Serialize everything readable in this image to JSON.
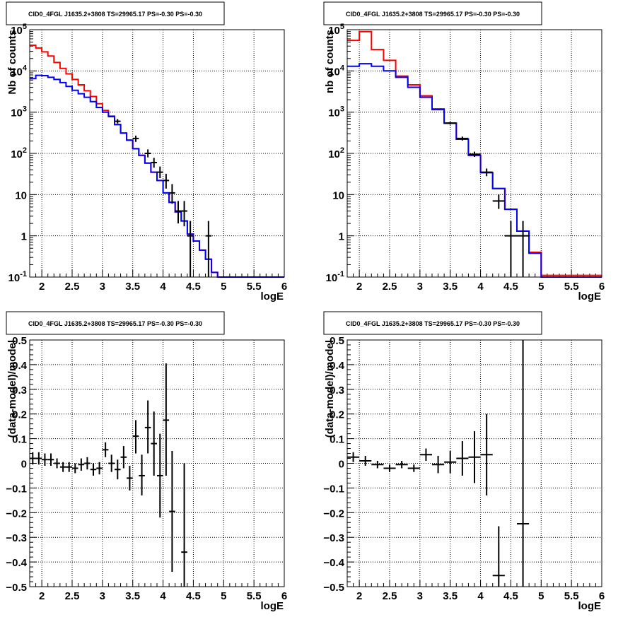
{
  "chart_data": [
    {
      "type": "line",
      "title": "CID0_4FGL J1635.2+3808 TS=29965.17 PS=-0.30 PS=-0.30",
      "xlabel": "logE",
      "ylabel": "Nb of counts",
      "xlim": [
        1.8,
        6.0
      ],
      "ylim": [
        0.1,
        100000
      ],
      "yscale": "log",
      "grid": true,
      "x_ticks": [
        "2",
        "2.5",
        "3",
        "3.5",
        "4",
        "4.5",
        "5",
        "5.5",
        "6"
      ],
      "y_ticks": [
        {
          "value": 0.1,
          "base": "10",
          "exp": "-1"
        },
        {
          "value": 1,
          "label": "1"
        },
        {
          "value": 10,
          "label": "10"
        },
        {
          "value": 100,
          "base": "10",
          "exp": "2"
        },
        {
          "value": 1000,
          "base": "10",
          "exp": "3"
        },
        {
          "value": 10000,
          "base": "10",
          "exp": "4"
        },
        {
          "value": 100000,
          "base": "10",
          "exp": "5"
        }
      ],
      "series": [
        {
          "kind": "step",
          "color": "#ff0000",
          "edges": [
            1.8,
            1.9,
            2.0,
            2.1,
            2.2,
            2.3,
            2.4,
            2.5,
            2.6,
            2.7,
            2.8,
            2.9,
            3.0,
            3.1,
            3.2,
            3.3,
            3.4,
            3.5,
            3.6,
            3.7,
            3.8,
            3.9,
            4.0,
            4.1,
            4.2,
            4.3,
            4.4,
            4.5,
            4.6,
            4.7,
            4.8,
            4.9,
            5.0,
            5.1,
            5.2,
            5.3,
            5.4,
            5.5,
            5.6,
            5.7,
            5.8,
            5.9,
            6.0
          ],
          "values": [
            42000,
            36000,
            29000,
            23000,
            16000,
            11500,
            8500,
            6200,
            4600,
            3300,
            2400,
            1600,
            1100,
            800,
            500,
            310,
            210,
            130,
            90,
            58,
            35,
            22,
            11,
            6.5,
            3.8,
            2.3,
            1.1,
            0.75,
            0.45,
            0.27,
            0.13,
            0.1,
            0.1,
            0.1,
            0.1,
            0.1,
            0.1,
            0.1,
            0.1,
            0.1,
            0.1,
            0.1
          ]
        },
        {
          "kind": "step",
          "color": "#0000ff",
          "edges": [
            1.8,
            1.9,
            2.0,
            2.1,
            2.2,
            2.3,
            2.4,
            2.5,
            2.6,
            2.7,
            2.8,
            2.9,
            3.0,
            3.1,
            3.2,
            3.3,
            3.4,
            3.5,
            3.6,
            3.7,
            3.8,
            3.9,
            4.0,
            4.1,
            4.2,
            4.3,
            4.4,
            4.5,
            4.6,
            4.7,
            4.8,
            4.9,
            5.0,
            5.1,
            5.2,
            5.3,
            5.4,
            5.5,
            5.6,
            5.7,
            5.8,
            5.9,
            6.0
          ],
          "values": [
            6500,
            7800,
            7700,
            7000,
            6200,
            5200,
            4200,
            3400,
            2800,
            2300,
            1800,
            1300,
            1000,
            780,
            500,
            310,
            210,
            130,
            90,
            58,
            35,
            22,
            11,
            6.5,
            3.8,
            2.3,
            1.1,
            0.75,
            0.45,
            0.27,
            0.13,
            0.1,
            0.1,
            0.1,
            0.1,
            0.1,
            0.1,
            0.1,
            0.1,
            0.1,
            0.1,
            0.1
          ]
        },
        {
          "kind": "points",
          "color": "#000000",
          "points": [
            {
              "x": 3.25,
              "xerr": 0.05,
              "y": 600,
              "ylo": 530,
              "yhi": 680
            },
            {
              "x": 3.55,
              "xerr": 0.05,
              "y": 230,
              "ylo": 190,
              "yhi": 270
            },
            {
              "x": 3.75,
              "xerr": 0.05,
              "y": 100,
              "ylo": 80,
              "yhi": 125
            },
            {
              "x": 3.85,
              "xerr": 0.05,
              "y": 60,
              "ylo": 45,
              "yhi": 78
            },
            {
              "x": 3.95,
              "xerr": 0.05,
              "y": 35,
              "ylo": 25,
              "yhi": 48
            },
            {
              "x": 4.05,
              "xerr": 0.05,
              "y": 22,
              "ylo": 14,
              "yhi": 32
            },
            {
              "x": 4.15,
              "xerr": 0.05,
              "y": 11,
              "ylo": 6,
              "yhi": 18
            },
            {
              "x": 4.25,
              "xerr": 0.05,
              "y": 4,
              "ylo": 2,
              "yhi": 7
            },
            {
              "x": 4.35,
              "xerr": 0.05,
              "y": 4,
              "ylo": 1.7,
              "yhi": 7
            },
            {
              "x": 4.45,
              "xerr": 0.05,
              "y": 1,
              "ylo": 0.1,
              "yhi": 2.3
            },
            {
              "x": 4.75,
              "xerr": 0.05,
              "y": 1,
              "ylo": 0.1,
              "yhi": 2.3
            }
          ]
        }
      ]
    },
    {
      "type": "line",
      "title": "CID0_4FGL J1635.2+3808 TS=29965.17 PS=-0.30 PS=-0.30",
      "xlabel": "logE",
      "ylabel": "nb of counts",
      "xlim": [
        1.8,
        6.0
      ],
      "ylim": [
        0.1,
        100000
      ],
      "yscale": "log",
      "grid": true,
      "x_ticks": [
        "2",
        "2.5",
        "3",
        "3.5",
        "4",
        "4.5",
        "5",
        "5.5",
        "6"
      ],
      "y_ticks": [
        {
          "value": 0.1,
          "base": "10",
          "exp": "-1"
        },
        {
          "value": 1,
          "label": "1"
        },
        {
          "value": 10,
          "label": "10"
        },
        {
          "value": 100,
          "base": "10",
          "exp": "2"
        },
        {
          "value": 1000,
          "base": "10",
          "exp": "3"
        },
        {
          "value": 10000,
          "base": "10",
          "exp": "4"
        },
        {
          "value": 100000,
          "base": "10",
          "exp": "5"
        }
      ],
      "series": [
        {
          "kind": "step",
          "color": "#ff0000",
          "edges": [
            1.8,
            2.0,
            2.2,
            2.4,
            2.6,
            2.8,
            3.0,
            3.2,
            3.4,
            3.6,
            3.8,
            4.0,
            4.2,
            4.4,
            4.6,
            4.8,
            5.0,
            5.2,
            5.4,
            5.6,
            5.8,
            6.0
          ],
          "values": [
            55000,
            90000,
            33000,
            18000,
            7500,
            4600,
            2500,
            1200,
            540,
            220,
            90,
            34,
            14,
            4.4,
            1.3,
            0.4,
            0.11,
            0.11,
            0.11,
            0.11,
            0.11
          ]
        },
        {
          "kind": "step",
          "color": "#0000ff",
          "edges": [
            1.8,
            2.0,
            2.2,
            2.4,
            2.6,
            2.8,
            3.0,
            3.2,
            3.4,
            3.6,
            3.8,
            4.0,
            4.2,
            4.4,
            4.6,
            4.8,
            5.0,
            5.2,
            5.4,
            5.6,
            5.8,
            6.0
          ],
          "values": [
            13000,
            15000,
            13000,
            10000,
            7000,
            4000,
            2300,
            1150,
            540,
            220,
            90,
            34,
            14,
            4.4,
            1.3,
            0.38,
            0.1,
            0.1,
            0.1,
            0.1,
            0.1
          ]
        },
        {
          "kind": "points",
          "color": "#000000",
          "points": [
            {
              "x": 3.5,
              "xerr": 0.1,
              "y": 540,
              "ylo": 500,
              "yhi": 580
            },
            {
              "x": 3.7,
              "xerr": 0.1,
              "y": 230,
              "ylo": 205,
              "yhi": 255
            },
            {
              "x": 3.9,
              "xerr": 0.1,
              "y": 95,
              "ylo": 82,
              "yhi": 110
            },
            {
              "x": 4.1,
              "xerr": 0.1,
              "y": 35,
              "ylo": 28,
              "yhi": 43
            },
            {
              "x": 4.3,
              "xerr": 0.1,
              "y": 7,
              "ylo": 4.5,
              "yhi": 10
            },
            {
              "x": 4.5,
              "xerr": 0.1,
              "y": 1,
              "ylo": 0.1,
              "yhi": 2.3
            },
            {
              "x": 4.7,
              "xerr": 0.1,
              "y": 1,
              "ylo": 0.1,
              "yhi": 2.3
            }
          ]
        }
      ]
    },
    {
      "type": "scatter",
      "title": "CID0_4FGL J1635.2+3808 TS=29965.17 PS=-0.30 PS=-0.30",
      "xlabel": "logE",
      "ylabel": "(data-model)/model",
      "xlim": [
        1.8,
        6.0
      ],
      "ylim": [
        -0.5,
        0.5
      ],
      "yscale": "linear",
      "grid": true,
      "x_ticks": [
        "2",
        "2.5",
        "3",
        "3.5",
        "4",
        "4.5",
        "5",
        "5.5",
        "6"
      ],
      "y_ticks": [
        {
          "value": 0.5,
          "label": "0.5"
        },
        {
          "value": 0.4,
          "label": "0.4"
        },
        {
          "value": 0.3,
          "label": "0.3"
        },
        {
          "value": 0.2,
          "label": "0.2"
        },
        {
          "value": 0.1,
          "label": "0.1"
        },
        {
          "value": 0,
          "label": "0"
        },
        {
          "value": -0.1,
          "label": "−0.1"
        },
        {
          "value": -0.2,
          "label": "−0.2"
        },
        {
          "value": -0.3,
          "label": "−0.3"
        },
        {
          "value": -0.4,
          "label": "−0.4"
        },
        {
          "value": -0.5,
          "label": "−0.5"
        }
      ],
      "series": [
        {
          "kind": "points",
          "color": "#000000",
          "points": [
            {
              "x": 1.85,
              "xerr": 0.05,
              "y": 0.02,
              "ylo": -0.005,
              "yhi": 0.045
            },
            {
              "x": 1.95,
              "xerr": 0.05,
              "y": 0.02,
              "ylo": -0.005,
              "yhi": 0.045
            },
            {
              "x": 2.05,
              "xerr": 0.05,
              "y": 0.015,
              "ylo": -0.01,
              "yhi": 0.04
            },
            {
              "x": 2.15,
              "xerr": 0.05,
              "y": 0.015,
              "ylo": -0.01,
              "yhi": 0.04
            },
            {
              "x": 2.25,
              "xerr": 0.05,
              "y": 0.0,
              "ylo": -0.02,
              "yhi": 0.02
            },
            {
              "x": 2.35,
              "xerr": 0.05,
              "y": -0.015,
              "ylo": -0.035,
              "yhi": 0.005
            },
            {
              "x": 2.45,
              "xerr": 0.05,
              "y": -0.015,
              "ylo": -0.035,
              "yhi": 0.005
            },
            {
              "x": 2.55,
              "xerr": 0.05,
              "y": -0.02,
              "ylo": -0.04,
              "yhi": 0.0
            },
            {
              "x": 2.65,
              "xerr": 0.05,
              "y": -0.005,
              "ylo": -0.03,
              "yhi": 0.02
            },
            {
              "x": 2.75,
              "xerr": 0.05,
              "y": 0.0,
              "ylo": -0.025,
              "yhi": 0.025
            },
            {
              "x": 2.85,
              "xerr": 0.05,
              "y": -0.025,
              "ylo": -0.05,
              "yhi": 0.0
            },
            {
              "x": 2.95,
              "xerr": 0.05,
              "y": -0.02,
              "ylo": -0.045,
              "yhi": 0.005
            },
            {
              "x": 3.05,
              "xerr": 0.05,
              "y": 0.055,
              "ylo": 0.025,
              "yhi": 0.085
            },
            {
              "x": 3.15,
              "xerr": 0.05,
              "y": 0.0,
              "ylo": -0.035,
              "yhi": 0.035
            },
            {
              "x": 3.25,
              "xerr": 0.05,
              "y": -0.025,
              "ylo": -0.065,
              "yhi": 0.015
            },
            {
              "x": 3.35,
              "xerr": 0.05,
              "y": 0.025,
              "ylo": -0.02,
              "yhi": 0.07
            },
            {
              "x": 3.45,
              "xerr": 0.05,
              "y": -0.06,
              "ylo": -0.11,
              "yhi": -0.01
            },
            {
              "x": 3.55,
              "xerr": 0.05,
              "y": 0.11,
              "ylo": 0.04,
              "yhi": 0.175
            },
            {
              "x": 3.65,
              "xerr": 0.05,
              "y": -0.05,
              "ylo": -0.13,
              "yhi": 0.035
            },
            {
              "x": 3.75,
              "xerr": 0.05,
              "y": 0.145,
              "ylo": 0.04,
              "yhi": 0.255
            },
            {
              "x": 3.85,
              "xerr": 0.05,
              "y": 0.08,
              "ylo": -0.05,
              "yhi": 0.21
            },
            {
              "x": 3.95,
              "xerr": 0.05,
              "y": -0.05,
              "ylo": -0.22,
              "yhi": 0.12
            },
            {
              "x": 4.05,
              "xerr": 0.05,
              "y": 0.175,
              "ylo": -0.05,
              "yhi": 0.405
            },
            {
              "x": 4.15,
              "xerr": 0.05,
              "y": -0.195,
              "ylo": -0.44,
              "yhi": 0.05
            },
            {
              "x": 4.35,
              "xerr": 0.05,
              "y": -0.36,
              "ylo": -0.5,
              "yhi": 0.0
            }
          ]
        }
      ]
    },
    {
      "type": "scatter",
      "title": "CID0_4FGL J1635.2+3808 TS=29965.17 PS=-0.30 PS=-0.30",
      "xlabel": "logE",
      "ylabel": "(data-model)/model",
      "xlim": [
        1.8,
        6.0
      ],
      "ylim": [
        -0.5,
        0.5
      ],
      "yscale": "linear",
      "grid": true,
      "x_ticks": [
        "2",
        "2.5",
        "3",
        "3.5",
        "4",
        "4.5",
        "5",
        "5.5",
        "6"
      ],
      "y_ticks": [
        {
          "value": 0.5,
          "label": "0.5"
        },
        {
          "value": 0.4,
          "label": "0.4"
        },
        {
          "value": 0.3,
          "label": "0.3"
        },
        {
          "value": 0.2,
          "label": "0.2"
        },
        {
          "value": 0.1,
          "label": "0.1"
        },
        {
          "value": 0,
          "label": "0"
        },
        {
          "value": -0.1,
          "label": "−0.1"
        },
        {
          "value": -0.2,
          "label": "−0.2"
        },
        {
          "value": -0.3,
          "label": "−0.3"
        },
        {
          "value": -0.4,
          "label": "−0.4"
        },
        {
          "value": -0.5,
          "label": "−0.5"
        }
      ],
      "series": [
        {
          "kind": "points",
          "color": "#000000",
          "points": [
            {
              "x": 1.9,
              "xerr": 0.1,
              "y": 0.025,
              "ylo": 0.005,
              "yhi": 0.045
            },
            {
              "x": 2.1,
              "xerr": 0.1,
              "y": 0.01,
              "ylo": -0.01,
              "yhi": 0.03
            },
            {
              "x": 2.3,
              "xerr": 0.1,
              "y": -0.005,
              "ylo": -0.02,
              "yhi": 0.01
            },
            {
              "x": 2.5,
              "xerr": 0.1,
              "y": -0.02,
              "ylo": -0.035,
              "yhi": -0.005
            },
            {
              "x": 2.7,
              "xerr": 0.1,
              "y": -0.005,
              "ylo": -0.02,
              "yhi": 0.01
            },
            {
              "x": 2.9,
              "xerr": 0.1,
              "y": -0.02,
              "ylo": -0.035,
              "yhi": -0.005
            },
            {
              "x": 3.1,
              "xerr": 0.1,
              "y": 0.035,
              "ylo": 0.01,
              "yhi": 0.06
            },
            {
              "x": 3.3,
              "xerr": 0.1,
              "y": -0.005,
              "ylo": -0.04,
              "yhi": 0.03
            },
            {
              "x": 3.5,
              "xerr": 0.1,
              "y": 0.005,
              "ylo": -0.04,
              "yhi": 0.05
            },
            {
              "x": 3.7,
              "xerr": 0.1,
              "y": 0.02,
              "ylo": -0.05,
              "yhi": 0.09
            },
            {
              "x": 3.9,
              "xerr": 0.1,
              "y": 0.025,
              "ylo": -0.08,
              "yhi": 0.13
            },
            {
              "x": 4.1,
              "xerr": 0.1,
              "y": 0.035,
              "ylo": -0.13,
              "yhi": 0.2
            },
            {
              "x": 4.3,
              "xerr": 0.1,
              "y": -0.455,
              "ylo": -0.5,
              "yhi": -0.255
            },
            {
              "x": 4.7,
              "xerr": 0.1,
              "y": -0.245,
              "ylo": -0.5,
              "yhi": 0.5
            }
          ]
        }
      ]
    }
  ]
}
